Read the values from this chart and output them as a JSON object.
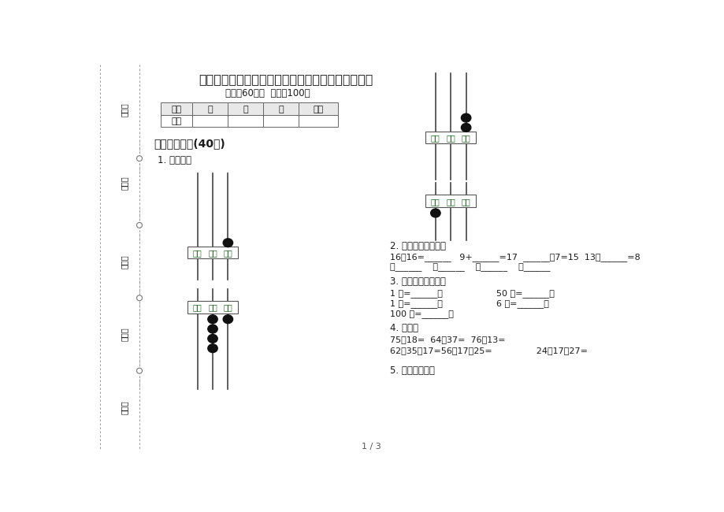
{
  "title": "新人教版一年级下学期练习题混合数学期末模拟试卷",
  "subtitle": "时间：60分钟  满分：100分",
  "bg_color": "#ffffff",
  "text_color": "#1a1a1a",
  "green_color": "#1a6b1a",
  "section1_title": "一、基础练习(40分)",
  "q1_title": "1. 看图写数",
  "q2_title": "2. 算一算，填一填：",
  "q2_line1": "16－16=______   9+______=17  ______－7=15  13－______=8",
  "q2_line2": "求______    求______    求______    求______",
  "q3_title": "3. 想一想，填一填。",
  "q3_line1a": "1 元=______角",
  "q3_line1b": "50 角=______元",
  "q3_line2a": "1 角=______分",
  "q3_line2b": "6 元=______角",
  "q3_line3a": "100 分=______元",
  "q4_title": "4. 算一算",
  "q4_line1": "75＋18=  64－37=  76＋13=",
  "q4_line2": "62－35＋17=56－17－25=                24＋17＋27=",
  "q5_title": "5. 找规律填数。",
  "table_headers": [
    "题号",
    "一",
    "二",
    "三",
    "总分"
  ],
  "table_row": [
    "得分",
    "",
    "",
    "",
    ""
  ],
  "margin_labels": [
    "考号：",
    "考场：",
    "姓名：",
    "班级：",
    "学校："
  ],
  "page_num": "1 / 3"
}
